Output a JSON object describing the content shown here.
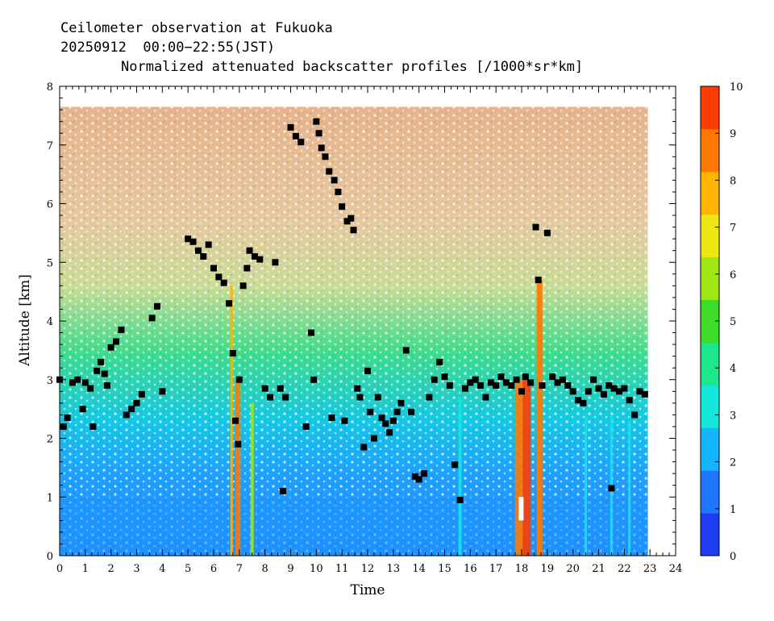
{
  "header": {
    "line1": "Ceilometer observation at Fukuoka",
    "line2": "20250912  00:00−22:55(JST)",
    "line3": "Normalized attenuated backscatter profiles [/1000*sr*km]"
  },
  "chart_data": {
    "type": "heatmap",
    "xlabel": "Time",
    "ylabel": "Altitude [km]",
    "xlim": [
      0,
      24
    ],
    "ylim": [
      0,
      8
    ],
    "x_ticks": [
      "0",
      "1",
      "2",
      "3",
      "4",
      "5",
      "6",
      "7",
      "8",
      "9",
      "10",
      "11",
      "12",
      "13",
      "14",
      "15",
      "16",
      "17",
      "18",
      "19",
      "20",
      "21",
      "22",
      "23",
      "24"
    ],
    "y_ticks": [
      "0",
      "1",
      "2",
      "3",
      "4",
      "5",
      "6",
      "7",
      "8"
    ],
    "data_end_hour": 22.917,
    "data_top_km": 7.65,
    "colorbar": {
      "range": [
        0,
        10
      ],
      "ticks": [
        "0",
        "1",
        "2",
        "3",
        "4",
        "5",
        "6",
        "7",
        "8",
        "9",
        "10"
      ],
      "colors": [
        "#1e3cf0",
        "#1e78ff",
        "#14b4ff",
        "#14e6dc",
        "#1ee68c",
        "#3cdc28",
        "#a0e614",
        "#f0e614",
        "#ffb400",
        "#ff7800",
        "#ff3c00"
      ]
    },
    "cloud_base_points": [
      [
        0.0,
        3.0
      ],
      [
        0.15,
        2.2
      ],
      [
        0.3,
        2.35
      ],
      [
        0.5,
        2.95
      ],
      [
        0.7,
        3.0
      ],
      [
        0.9,
        2.5
      ],
      [
        1.0,
        2.95
      ],
      [
        1.2,
        2.85
      ],
      [
        1.3,
        2.2
      ],
      [
        1.45,
        3.15
      ],
      [
        1.6,
        3.3
      ],
      [
        1.75,
        3.1
      ],
      [
        1.85,
        2.9
      ],
      [
        2.0,
        3.55
      ],
      [
        2.2,
        3.65
      ],
      [
        2.4,
        3.85
      ],
      [
        2.6,
        2.4
      ],
      [
        2.8,
        2.5
      ],
      [
        3.0,
        2.6
      ],
      [
        3.2,
        2.75
      ],
      [
        3.6,
        4.05
      ],
      [
        3.8,
        4.25
      ],
      [
        4.0,
        2.8
      ],
      [
        5.0,
        5.4
      ],
      [
        5.2,
        5.35
      ],
      [
        5.4,
        5.2
      ],
      [
        5.6,
        5.1
      ],
      [
        5.8,
        5.3
      ],
      [
        6.0,
        4.9
      ],
      [
        6.2,
        4.75
      ],
      [
        6.4,
        4.65
      ],
      [
        6.6,
        4.3
      ],
      [
        6.75,
        3.45
      ],
      [
        6.85,
        2.3
      ],
      [
        6.95,
        1.9
      ],
      [
        7.0,
        3.0
      ],
      [
        7.15,
        4.6
      ],
      [
        7.3,
        4.9
      ],
      [
        7.4,
        5.2
      ],
      [
        7.6,
        5.1
      ],
      [
        7.8,
        5.05
      ],
      [
        8.0,
        2.85
      ],
      [
        8.2,
        2.7
      ],
      [
        8.4,
        5.0
      ],
      [
        8.6,
        2.85
      ],
      [
        8.8,
        2.7
      ],
      [
        9.0,
        7.3
      ],
      [
        9.2,
        7.15
      ],
      [
        9.4,
        7.05
      ],
      [
        9.6,
        2.2
      ],
      [
        9.8,
        3.8
      ],
      [
        9.9,
        3.0
      ],
      [
        10.0,
        7.4
      ],
      [
        10.1,
        7.2
      ],
      [
        10.2,
        6.95
      ],
      [
        10.35,
        6.8
      ],
      [
        10.5,
        6.55
      ],
      [
        10.6,
        2.35
      ],
      [
        10.7,
        6.4
      ],
      [
        10.85,
        6.2
      ],
      [
        11.0,
        5.95
      ],
      [
        11.1,
        2.3
      ],
      [
        11.2,
        5.7
      ],
      [
        11.35,
        5.75
      ],
      [
        11.45,
        5.55
      ],
      [
        11.6,
        2.85
      ],
      [
        11.7,
        2.7
      ],
      [
        11.85,
        1.85
      ],
      [
        12.0,
        3.15
      ],
      [
        12.1,
        2.45
      ],
      [
        12.25,
        2.0
      ],
      [
        12.4,
        2.7
      ],
      [
        12.55,
        2.35
      ],
      [
        12.7,
        2.25
      ],
      [
        12.85,
        2.1
      ],
      [
        13.0,
        2.3
      ],
      [
        13.15,
        2.45
      ],
      [
        13.3,
        2.6
      ],
      [
        13.5,
        3.5
      ],
      [
        13.7,
        2.45
      ],
      [
        13.85,
        1.35
      ],
      [
        14.0,
        1.3
      ],
      [
        14.2,
        1.4
      ],
      [
        14.4,
        2.7
      ],
      [
        14.6,
        3.0
      ],
      [
        14.8,
        3.3
      ],
      [
        15.0,
        3.05
      ],
      [
        15.2,
        2.9
      ],
      [
        15.4,
        1.55
      ],
      [
        15.6,
        0.95
      ],
      [
        15.8,
        2.85
      ],
      [
        16.0,
        2.95
      ],
      [
        16.2,
        3.0
      ],
      [
        16.4,
        2.9
      ],
      [
        16.6,
        2.7
      ],
      [
        16.8,
        2.95
      ],
      [
        17.0,
        2.9
      ],
      [
        17.2,
        3.05
      ],
      [
        17.4,
        2.95
      ],
      [
        17.6,
        2.9
      ],
      [
        17.8,
        3.0
      ],
      [
        18.0,
        2.8
      ],
      [
        18.15,
        3.05
      ],
      [
        18.35,
        2.95
      ],
      [
        18.55,
        5.6
      ],
      [
        18.65,
        4.7
      ],
      [
        18.8,
        2.9
      ],
      [
        19.0,
        5.5
      ],
      [
        19.2,
        3.05
      ],
      [
        19.4,
        2.95
      ],
      [
        19.6,
        3.0
      ],
      [
        19.8,
        2.9
      ],
      [
        20.0,
        2.8
      ],
      [
        20.2,
        2.65
      ],
      [
        20.4,
        2.6
      ],
      [
        20.6,
        2.8
      ],
      [
        20.8,
        3.0
      ],
      [
        21.0,
        2.85
      ],
      [
        21.2,
        2.75
      ],
      [
        21.4,
        2.9
      ],
      [
        21.6,
        2.85
      ],
      [
        21.8,
        2.8
      ],
      [
        22.0,
        2.85
      ],
      [
        22.2,
        2.65
      ],
      [
        22.4,
        2.4
      ],
      [
        22.6,
        2.8
      ],
      [
        22.8,
        2.75
      ],
      [
        21.5,
        1.15
      ],
      [
        8.7,
        1.1
      ]
    ]
  }
}
